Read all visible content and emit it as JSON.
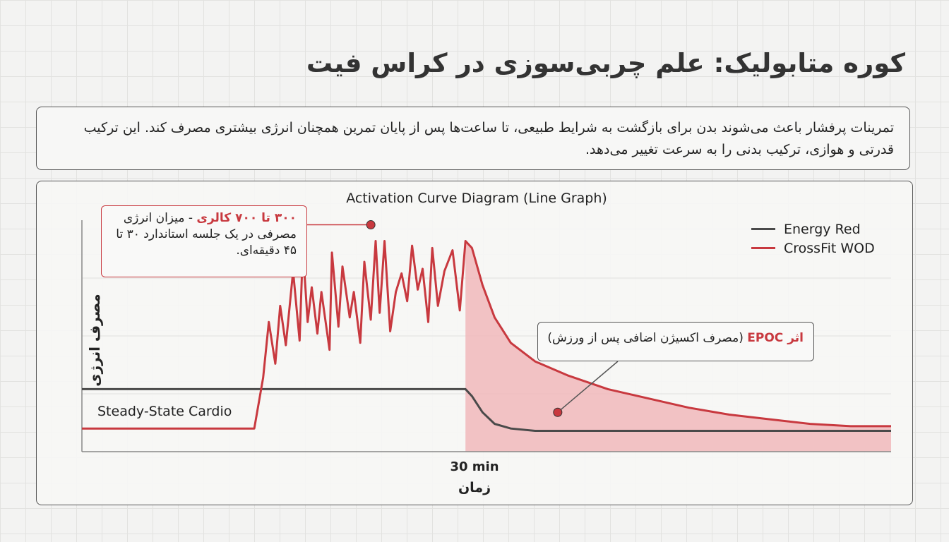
{
  "header": {
    "title": "کوره متابولیک: علم چربی‌سوزی در کراس فیت"
  },
  "intro": {
    "text": "تمرینات پرفشار باعث می‌شوند بدن برای بازگشت به شرایط طبیعی، تا ساعت‌ها پس از پایان تمرین همچنان انرژی بیشتری مصرف کند. این ترکیب قدرتی و هوازی، ترکیب بدنی را به سرعت تغییر می‌دهد."
  },
  "colors": {
    "crossfit": "#c8393f",
    "energy": "#4a4a4a",
    "epoc_fill": "#f1b9bb"
  },
  "chart_data": {
    "type": "line",
    "title": "Activation Curve Diagram (Line Graph)",
    "xlabel": "زمان",
    "ylabel": "مصرف انرژی",
    "x_ticks": [
      "30 min"
    ],
    "xlim": [
      0,
      100
    ],
    "ylim": [
      0,
      100
    ],
    "grid": true,
    "legend_position": "top-right",
    "legend": [
      "Energy Red",
      "CrossFit WOD"
    ],
    "series": [
      {
        "name": "Energy Red",
        "x": [
          0,
          47.4,
          48.2,
          49.5,
          51,
          53,
          56,
          60,
          65,
          100
        ],
        "y": [
          27,
          27,
          24,
          17,
          12,
          10,
          9,
          9,
          9,
          9
        ]
      },
      {
        "name": "CrossFit WOD",
        "x": [
          0,
          21.3,
          22.4,
          23.1,
          23.9,
          24.5,
          25.2,
          26.1,
          26.9,
          27.3,
          27.9,
          28.4,
          29.1,
          29.6,
          30.6,
          30.9,
          31.7,
          32.2,
          33.1,
          33.6,
          34.4,
          34.9,
          35.7,
          36.3,
          36.8,
          37.4,
          38.1,
          38.8,
          39.5,
          40.2,
          40.8,
          41.5,
          42.1,
          42.8,
          43.3,
          44.0,
          44.8,
          45.8,
          46.7,
          47.4,
          48.2,
          49.5,
          51,
          53,
          56,
          60,
          65,
          70,
          75,
          80,
          85,
          90,
          95,
          100
        ],
        "y": [
          10,
          10,
          32,
          56,
          38,
          63,
          46,
          78,
          48,
          88,
          56,
          71,
          51,
          69,
          44,
          86,
          54,
          80,
          58,
          69,
          47,
          82,
          57,
          91,
          60,
          91,
          52,
          69,
          77,
          65,
          89,
          70,
          79,
          56,
          88,
          63,
          78,
          87,
          61,
          91,
          88,
          72,
          58,
          47,
          39,
          33,
          27,
          23,
          19,
          16,
          14,
          12,
          11,
          11
        ]
      }
    ],
    "annotations": [
      {
        "type": "peak",
        "x": 35.7,
        "y": 98,
        "highlight": "۳۰۰ تا ۷۰۰ کالری",
        "text": " - میزان انرژی مصرفی در یک جلسه استاندارد ۳۰ تا ۴۵ دقیقه‌ای."
      },
      {
        "type": "area",
        "x": 58.8,
        "y": 17,
        "highlight": "اثر EPOC",
        "text": " (مصرف اکسیژن اضافی پس از ورزش)"
      }
    ],
    "labels": {
      "steady_state": "Steady-State Cardio"
    }
  }
}
